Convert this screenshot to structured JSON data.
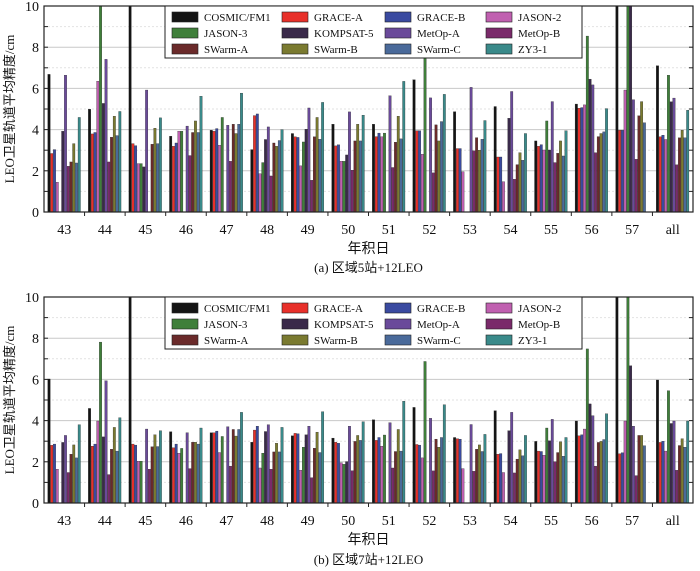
{
  "chart_data": [
    {
      "type": "bar",
      "caption": "(a) 区域5站+12LEO",
      "xlabel": "年积日",
      "ylabel": "LEO卫星轨道平均精度/cm",
      "ylim": [
        0,
        10
      ],
      "yticks": [
        0,
        2,
        4,
        6,
        8,
        10
      ],
      "grid": true,
      "legend_position": "top-center",
      "categories": [
        "43",
        "44",
        "45",
        "46",
        "47",
        "48",
        "49",
        "50",
        "51",
        "52",
        "53",
        "54",
        "55",
        "56",
        "57",
        "all"
      ],
      "series": [
        {
          "name": "COSMIC/FM1",
          "color": "#141414",
          "values": [
            6.68,
            4.99,
            10,
            3.68,
            3.97,
            3.03,
            3.81,
            4.26,
            4.26,
            6.42,
            4.87,
            5.12,
            3.45,
            5.24,
            10,
            7.1
          ]
        },
        {
          "name": "GRACE-A",
          "color": "#e8302a",
          "values": [
            2.84,
            3.79,
            3.32,
            3.19,
            3.92,
            4.68,
            3.65,
            3.21,
            3.66,
            3.94,
            3.08,
            2.67,
            3.19,
            5.04,
            3.97,
            3.65
          ]
        },
        {
          "name": "GRACE-B",
          "color": "#3a4aa0",
          "values": [
            3.03,
            3.86,
            3.22,
            3.35,
            4.05,
            4.76,
            3.62,
            3.26,
            3.83,
            3.94,
            3.08,
            2.67,
            3.27,
            5.07,
            3.97,
            3.73
          ]
        },
        {
          "name": "JASON-2",
          "color": "#c060b0",
          "values": [
            1.44,
            6.35,
            2.35,
            3.92,
            3.24,
            1.86,
            2.24,
            2.46,
            3.65,
            2.8,
            1.95,
            1.47,
            3.01,
            5.2,
            5.92,
            3.52
          ]
        },
        {
          "name": "JASON-3",
          "color": "#3f7f3a",
          "values": [
            0,
            10,
            2.35,
            3.92,
            4.59,
            2.4,
            3.4,
            2.46,
            3.83,
            10,
            0,
            0,
            4.42,
            8.54,
            10,
            6.64
          ]
        },
        {
          "name": "KOMPSAT-5",
          "color": "#3a2a4a",
          "values": [
            3.92,
            5.27,
            2.19,
            0,
            0,
            3.52,
            4.02,
            2.77,
            0,
            0,
            0,
            4.55,
            3.01,
            6.45,
            10,
            5.35
          ]
        },
        {
          "name": "MetOp-A",
          "color": "#6a4a9a",
          "values": [
            6.64,
            7.41,
            5.92,
            4.17,
            4.21,
            4.13,
            5.05,
            4.86,
            5.64,
            5.54,
            6.05,
            5.85,
            5.36,
            6.17,
            5.45,
            5.53
          ]
        },
        {
          "name": "MetOp-B",
          "color": "#7a2a6a",
          "values": [
            2.22,
            2.43,
            0,
            2.74,
            2.46,
            1.75,
            1.54,
            2.03,
            2.16,
            1.9,
            2.97,
            1.59,
            2.4,
            2.88,
            2.56,
            2.29
          ]
        },
        {
          "name": "SWarm-A",
          "color": "#6a2a2a",
          "values": [
            2.43,
            3.63,
            3.29,
            3.86,
            4.26,
            3.35,
            3.65,
            3.45,
            3.39,
            4.23,
            3.61,
            2.3,
            2.85,
            3.66,
            4.67,
            3.6
          ]
        },
        {
          "name": "SWarm-B",
          "color": "#7a7a30",
          "values": [
            3.32,
            4.65,
            4.07,
            4.42,
            3.81,
            3.19,
            4.59,
            4.26,
            4.65,
            3.45,
            3.0,
            2.88,
            3.45,
            3.81,
            5.36,
            3.97
          ]
        },
        {
          "name": "SWarm-C",
          "color": "#4a6a9a",
          "values": [
            2.38,
            3.71,
            3.32,
            3.86,
            4.26,
            3.47,
            3.53,
            3.45,
            3.55,
            4.39,
            3.53,
            2.51,
            2.72,
            3.89,
            4.33,
            3.6
          ]
        },
        {
          "name": "ZY3-1",
          "color": "#3a8a8a",
          "values": [
            4.59,
            4.88,
            4.57,
            5.62,
            5.77,
            4.0,
            5.32,
            4.7,
            6.34,
            5.71,
            4.44,
            3.81,
            3.94,
            5.02,
            0,
            4.94
          ]
        }
      ]
    },
    {
      "type": "bar",
      "caption": "(b) 区域7站+12LEO",
      "xlabel": "年积日",
      "ylabel": "LEO卫星轨道平均精度/cm",
      "ylim": [
        0,
        10
      ],
      "yticks": [
        0,
        2,
        4,
        6,
        8,
        10
      ],
      "grid": true,
      "legend_position": "top-center",
      "categories": [
        "43",
        "44",
        "45",
        "46",
        "47",
        "48",
        "49",
        "50",
        "51",
        "52",
        "53",
        "54",
        "55",
        "56",
        "57",
        "all"
      ],
      "series": [
        {
          "name": "COSMIC/FM1",
          "color": "#141414",
          "values": [
            6.02,
            4.59,
            10,
            3.46,
            3.41,
            2.95,
            3.26,
            3.15,
            4.04,
            4.64,
            3.18,
            4.48,
            2.99,
            3.98,
            10,
            5.97
          ]
        },
        {
          "name": "GRACE-A",
          "color": "#e8302a",
          "values": [
            2.8,
            2.76,
            2.86,
            2.68,
            3.41,
            3.54,
            3.38,
            2.95,
            3.04,
            2.84,
            3.12,
            2.37,
            2.52,
            3.26,
            2.39,
            2.94
          ]
        },
        {
          "name": "GRACE-B",
          "color": "#3a4aa0",
          "values": [
            2.86,
            2.86,
            2.81,
            2.86,
            3.49,
            3.73,
            3.36,
            2.9,
            3.18,
            2.81,
            3.1,
            2.4,
            2.5,
            3.31,
            2.44,
            3.0
          ]
        },
        {
          "name": "JASON-2",
          "color": "#c060b0",
          "values": [
            1.64,
            3.98,
            2.03,
            2.42,
            2.45,
            1.7,
            1.59,
            1.95,
            2.76,
            2.19,
            1.67,
            1.48,
            2.32,
            3.59,
            3.98,
            2.52
          ]
        },
        {
          "name": "JASON-3",
          "color": "#3f7f3a",
          "values": [
            0,
            7.81,
            2.03,
            2.65,
            3.23,
            2.42,
            2.71,
            1.88,
            3.3,
            6.87,
            0,
            0,
            3.64,
            7.48,
            10,
            5.45
          ]
        },
        {
          "name": "KOMPSAT-5",
          "color": "#3a2a4a",
          "values": [
            2.94,
            3.21,
            0,
            0,
            0,
            3.47,
            3.31,
            2.01,
            0,
            0,
            0,
            3.51,
            3.02,
            4.81,
            6.66,
            3.86
          ]
        },
        {
          "name": "MetOp-A",
          "color": "#6a4a9a",
          "values": [
            3.28,
            5.93,
            3.59,
            3.41,
            3.7,
            3.8,
            3.73,
            3.73,
            3.9,
            4.11,
            3.81,
            4.4,
            4.06,
            4.24,
            3.73,
            3.98
          ]
        },
        {
          "name": "MetOp-B",
          "color": "#7a2a6a",
          "values": [
            1.48,
            1.38,
            1.64,
            1.67,
            1.79,
            1.64,
            1.23,
            1.57,
            1.7,
            1.56,
            1.54,
            1.46,
            2.0,
            1.79,
            1.33,
            1.59
          ]
        },
        {
          "name": "SWarm-A",
          "color": "#6a2a2a",
          "values": [
            2.37,
            2.61,
            2.73,
            2.95,
            3.57,
            2.48,
            2.66,
            2.99,
            2.5,
            3.1,
            2.61,
            2.13,
            2.45,
            2.94,
            3.28,
            2.79
          ]
        },
        {
          "name": "SWarm-B",
          "color": "#7a7a30",
          "values": [
            2.82,
            3.67,
            3.31,
            2.95,
            3.25,
            2.9,
            3.44,
            3.28,
            3.57,
            2.71,
            2.82,
            2.58,
            2.97,
            2.99,
            3.28,
            3.12
          ]
        },
        {
          "name": "SWarm-C",
          "color": "#4a6a9a",
          "values": [
            2.19,
            2.52,
            2.74,
            2.86,
            3.57,
            2.48,
            2.45,
            3.04,
            2.52,
            3.18,
            2.5,
            2.29,
            2.27,
            3.08,
            2.78,
            2.71
          ]
        },
        {
          "name": "ZY3-1",
          "color": "#3a8a8a",
          "values": [
            3.8,
            4.14,
            3.51,
            3.64,
            4.4,
            3.67,
            4.43,
            3.94,
            4.94,
            4.77,
            3.33,
            3.28,
            3.18,
            4.33,
            0,
            3.98
          ]
        }
      ]
    }
  ]
}
